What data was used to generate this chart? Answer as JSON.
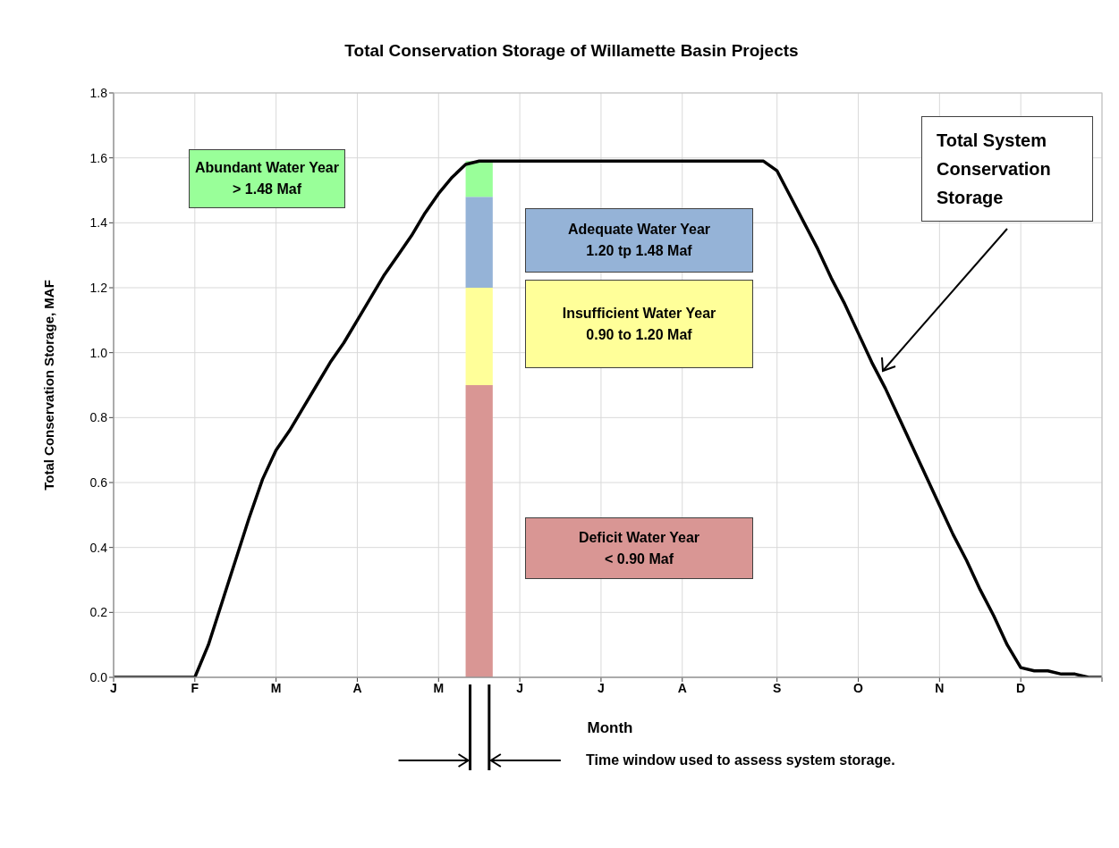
{
  "chart_data": {
    "type": "line",
    "title": "Total Conservation Storage of Willamette Basin Projects",
    "xlabel": "Month",
    "ylabel": "Total Conservation Storage, MAF",
    "categories": [
      "J",
      null,
      null,
      null,
      null,
      null,
      "F",
      null,
      null,
      null,
      null,
      null,
      "M",
      null,
      null,
      null,
      null,
      null,
      "A",
      null,
      null,
      null,
      null,
      null,
      "M",
      null,
      null,
      null,
      null,
      null,
      "J",
      null,
      null,
      null,
      null,
      null,
      "J",
      null,
      null,
      null,
      null,
      null,
      "A",
      null,
      null,
      null,
      null,
      null,
      null,
      "S",
      null,
      null,
      null,
      null,
      null,
      "O",
      null,
      null,
      null,
      null,
      null,
      "N",
      null,
      null,
      null,
      null,
      null,
      "D",
      null,
      null,
      null,
      null,
      null,
      null
    ],
    "ylim": [
      0,
      1.8
    ],
    "yticks": [
      {
        "value": 0,
        "label": "0.0"
      },
      {
        "value": 0.2,
        "label": "0.2"
      },
      {
        "value": 0.4,
        "label": "0.4"
      },
      {
        "value": 0.6,
        "label": "0.6"
      },
      {
        "value": 0.8,
        "label": "0.8"
      },
      {
        "value": 1,
        "label": "1.0"
      },
      {
        "value": 1.2,
        "label": "1.2"
      },
      {
        "value": 1.4,
        "label": "1.4"
      },
      {
        "value": 1.6,
        "label": "1.6"
      },
      {
        "value": 1.8,
        "label": "1.8"
      }
    ],
    "grid": true,
    "legend": false,
    "marker": "none",
    "line_style": "solid",
    "stacked": true,
    "series": [
      {
        "type": "area",
        "color": "#d99694",
        "values": [
          null,
          null,
          null,
          null,
          null,
          null,
          null,
          null,
          null,
          null,
          null,
          null,
          null,
          null,
          null,
          null,
          null,
          null,
          null,
          null,
          null,
          null,
          null,
          null,
          null,
          null,
          0.9,
          0.9,
          0.9,
          null,
          null,
          null,
          null,
          null,
          null,
          null,
          null,
          null,
          null,
          null,
          null,
          null,
          null,
          null,
          null,
          null,
          null,
          null,
          null,
          null,
          null,
          null,
          null,
          null,
          null,
          null,
          null,
          null,
          null,
          null,
          null,
          null,
          null,
          null,
          null,
          null,
          null,
          null,
          null,
          null,
          null,
          null,
          null,
          null
        ]
      },
      {
        "type": "area",
        "color": "#ffff99",
        "values": [
          null,
          null,
          null,
          null,
          null,
          null,
          null,
          null,
          null,
          null,
          null,
          null,
          null,
          null,
          null,
          null,
          null,
          null,
          null,
          null,
          null,
          null,
          null,
          null,
          null,
          null,
          0.3,
          0.3,
          0.3,
          null,
          null,
          null,
          null,
          null,
          null,
          null,
          null,
          null,
          null,
          null,
          null,
          null,
          null,
          null,
          null,
          null,
          null,
          null,
          null,
          null,
          null,
          null,
          null,
          null,
          null,
          null,
          null,
          null,
          null,
          null,
          null,
          null,
          null,
          null,
          null,
          null,
          null,
          null,
          null,
          null,
          null,
          null,
          null,
          null
        ]
      },
      {
        "type": "area",
        "color": "#95b3d7",
        "values": [
          null,
          null,
          null,
          null,
          null,
          null,
          null,
          null,
          null,
          null,
          null,
          null,
          null,
          null,
          null,
          null,
          null,
          null,
          null,
          null,
          null,
          null,
          null,
          null,
          null,
          null,
          0.28,
          0.28,
          0.28,
          null,
          null,
          null,
          null,
          null,
          null,
          null,
          null,
          null,
          null,
          null,
          null,
          null,
          null,
          null,
          null,
          null,
          null,
          null,
          null,
          null,
          null,
          null,
          null,
          null,
          null,
          null,
          null,
          null,
          null,
          null,
          null,
          null,
          null,
          null,
          null,
          null,
          null,
          null,
          null,
          null,
          null,
          null,
          null,
          null
        ]
      },
      {
        "type": "area",
        "color": "#99ff99",
        "values": [
          null,
          null,
          null,
          null,
          null,
          null,
          null,
          null,
          null,
          null,
          null,
          null,
          null,
          null,
          null,
          null,
          null,
          null,
          null,
          null,
          null,
          null,
          null,
          null,
          null,
          null,
          0.11,
          0.11,
          0.11,
          null,
          null,
          null,
          null,
          null,
          null,
          null,
          null,
          null,
          null,
          null,
          null,
          null,
          null,
          null,
          null,
          null,
          null,
          null,
          null,
          null,
          null,
          null,
          null,
          null,
          null,
          null,
          null,
          null,
          null,
          null,
          null,
          null,
          null,
          null,
          null,
          null,
          null,
          null,
          null,
          null,
          null,
          null,
          null,
          null
        ]
      },
      {
        "color": "#000000",
        "values": [
          0,
          0,
          0,
          0,
          0,
          0,
          0,
          0.1,
          0.23,
          0.36,
          0.49,
          0.61,
          0.7,
          0.76,
          0.83,
          0.9,
          0.97,
          1.03,
          1.1,
          1.17,
          1.24,
          1.3,
          1.36,
          1.43,
          1.49,
          1.54,
          1.58,
          1.59,
          1.59,
          1.59,
          1.59,
          1.59,
          1.59,
          1.59,
          1.59,
          1.59,
          1.59,
          1.59,
          1.59,
          1.59,
          1.59,
          1.59,
          1.59,
          1.59,
          1.59,
          1.59,
          1.59,
          1.59,
          1.59,
          1.56,
          1.48,
          1.4,
          1.32,
          1.23,
          1.15,
          1.06,
          0.97,
          0.89,
          0.8,
          0.71,
          0.62,
          0.53,
          0.44,
          0.36,
          0.27,
          0.19,
          0.1,
          0.03,
          0.02,
          0.02,
          0.01,
          0.01,
          0,
          0
        ]
      }
    ],
    "annotations": [
      "Deficit Water Year\n< 0.90 Maf",
      "Insufficient Water Year\n0.90 to 1.20 Maf",
      "Adequate Water Year\n1.20 tp 1.48 Maf",
      "Abundant Water Year\n> 1.48 Maf",
      "Total System\nConservation\nStorage",
      "Time window used to assess system storage."
    ]
  }
}
